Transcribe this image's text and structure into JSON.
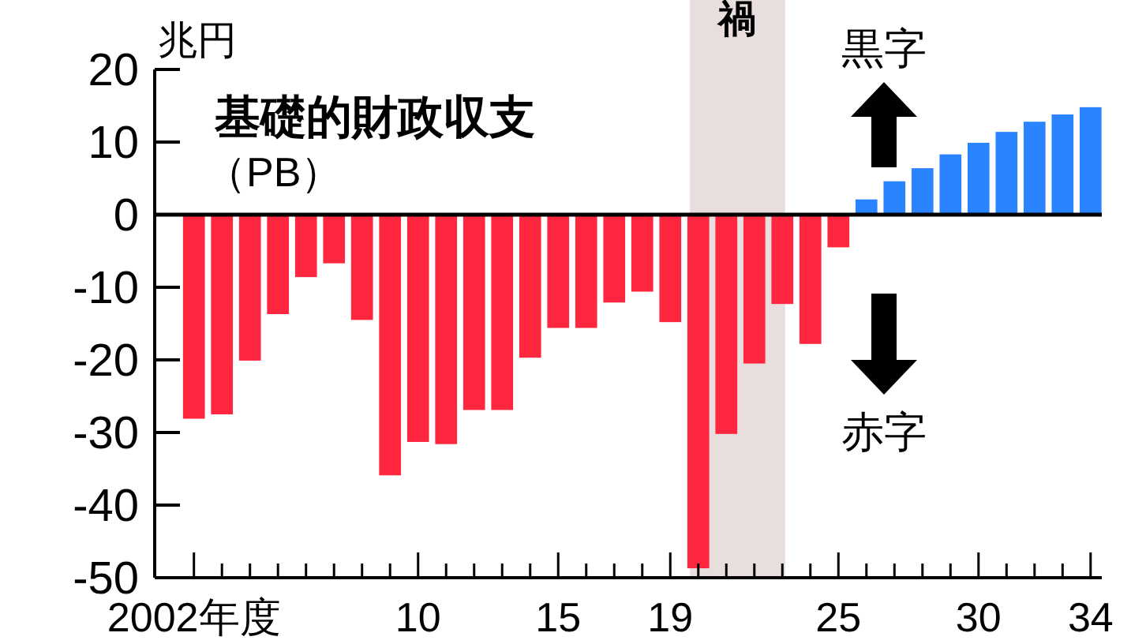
{
  "chart_data": {
    "type": "bar",
    "title": "基礎的財政収支",
    "subtitle": "（PB）",
    "ylabel": "兆円",
    "x": [
      2002,
      2003,
      2004,
      2005,
      2006,
      2007,
      2008,
      2009,
      2010,
      2011,
      2012,
      2013,
      2014,
      2015,
      2016,
      2017,
      2018,
      2019,
      2020,
      2021,
      2022,
      2023,
      2024,
      2025,
      2026,
      2027,
      2028,
      2029,
      2030,
      2031,
      2032,
      2033,
      2034
    ],
    "values": [
      -28.1,
      -27.5,
      -20.1,
      -13.7,
      -8.6,
      -6.7,
      -14.5,
      -35.9,
      -31.3,
      -31.6,
      -26.9,
      -26.9,
      -19.7,
      -15.6,
      -15.6,
      -12.1,
      -10.6,
      -14.8,
      -48.7,
      -30.2,
      -20.5,
      -12.3,
      -17.8,
      -4.5,
      2.1,
      4.6,
      6.4,
      8.3,
      9.9,
      11.4,
      12.8,
      13.8,
      14.8
    ],
    "colors": [
      "#ff2640",
      "#ff2640",
      "#ff2640",
      "#ff2640",
      "#ff2640",
      "#ff2640",
      "#ff2640",
      "#ff2640",
      "#ff2640",
      "#ff2640",
      "#ff2640",
      "#ff2640",
      "#ff2640",
      "#ff2640",
      "#ff2640",
      "#ff2640",
      "#ff2640",
      "#ff2640",
      "#ff2640",
      "#ff2640",
      "#ff2640",
      "#ff2640",
      "#ff2640",
      "#ff2640",
      "#2a84ff",
      "#2a84ff",
      "#2a84ff",
      "#2a84ff",
      "#2a84ff",
      "#2a84ff",
      "#2a84ff",
      "#2a84ff",
      "#2a84ff"
    ],
    "xlim": [
      2000.6,
      2034.4
    ],
    "ylim": [
      -50,
      20
    ],
    "yticks": [
      -50,
      -40,
      -30,
      -20,
      -10,
      0,
      10,
      20
    ],
    "xticks": [
      {
        "value": 2002,
        "label": "2002年度"
      },
      {
        "value": 2003,
        "label": null
      },
      {
        "value": 2004,
        "label": null
      },
      {
        "value": 2005,
        "label": null
      },
      {
        "value": 2006,
        "label": null
      },
      {
        "value": 2007,
        "label": null
      },
      {
        "value": 2008,
        "label": null
      },
      {
        "value": 2009,
        "label": null
      },
      {
        "value": 2010,
        "label": "10"
      },
      {
        "value": 2011,
        "label": null
      },
      {
        "value": 2012,
        "label": null
      },
      {
        "value": 2013,
        "label": null
      },
      {
        "value": 2014,
        "label": null
      },
      {
        "value": 2015,
        "label": "15"
      },
      {
        "value": 2016,
        "label": null
      },
      {
        "value": 2017,
        "label": null
      },
      {
        "value": 2018,
        "label": null
      },
      {
        "value": 2019,
        "label": "19"
      },
      {
        "value": 2020,
        "label": null
      },
      {
        "value": 2021,
        "label": null
      },
      {
        "value": 2022,
        "label": null
      },
      {
        "value": 2023,
        "label": null
      },
      {
        "value": 2024,
        "label": null
      },
      {
        "value": 2025,
        "label": "25"
      },
      {
        "value": 2026,
        "label": null
      },
      {
        "value": 2027,
        "label": null
      },
      {
        "value": 2028,
        "label": null
      },
      {
        "value": 2029,
        "label": null
      },
      {
        "value": 2030,
        "label": "30"
      },
      {
        "value": 2031,
        "label": null
      },
      {
        "value": 2032,
        "label": null
      },
      {
        "value": 2033,
        "label": null
      },
      {
        "value": 2034,
        "label": "34"
      }
    ],
    "bands": [
      {
        "axis": "x",
        "from": 2019.7,
        "to": 2023.1,
        "label": "禍",
        "color": "#e8dede"
      }
    ],
    "annotations": [
      "黒字",
      "赤字"
    ]
  }
}
